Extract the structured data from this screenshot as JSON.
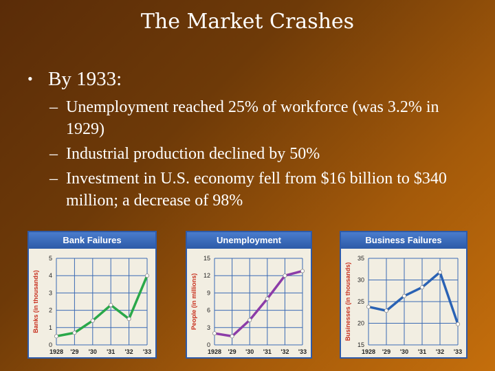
{
  "slide": {
    "title": "The Market Crashes",
    "bullet": "By 1933:",
    "sub_bullets": [
      "Unemployment reached 25% of workforce (was 3.2% in 1929)",
      "Industrial production declined by 50%",
      "Investment in U.S. economy fell from $16 billion to $340 million; a decrease of 98%"
    ]
  },
  "chart_data": [
    {
      "type": "line",
      "title": "Bank Failures",
      "ylabel": "Banks (in thousands)",
      "x_ticks": [
        "1928",
        "'29",
        "'30",
        "'31",
        "'32",
        "'33"
      ],
      "y_ticks": [
        "0",
        "1",
        "2",
        "3",
        "4",
        "5"
      ],
      "ylim": [
        0,
        5
      ],
      "series": [
        {
          "values": [
            0.5,
            0.7,
            1.4,
            2.3,
            1.5,
            4.0
          ]
        }
      ],
      "line_color": "#2aa84a",
      "label_color": "#c8301e"
    },
    {
      "type": "line",
      "title": "Unemployment",
      "ylabel": "People (in millions)",
      "x_ticks": [
        "1928",
        "'29",
        "'30",
        "'31",
        "'32",
        "'33"
      ],
      "y_ticks": [
        "0",
        "3",
        "6",
        "9",
        "12",
        "15"
      ],
      "ylim": [
        0,
        15
      ],
      "series": [
        {
          "values": [
            2.0,
            1.5,
            4.3,
            8.0,
            12.0,
            12.8
          ]
        }
      ],
      "line_color": "#8c3ca8",
      "label_color": "#c8301e"
    },
    {
      "type": "line",
      "title": "Business Failures",
      "ylabel": "Businesses (in thousands)",
      "x_ticks": [
        "1928",
        "'29",
        "'30",
        "'31",
        "'32",
        "'33"
      ],
      "y_ticks": [
        "15",
        "20",
        "25",
        "30",
        "35"
      ],
      "ylim": [
        15,
        35
      ],
      "series": [
        {
          "values": [
            23.8,
            22.9,
            26.3,
            28.3,
            31.8,
            19.8
          ]
        }
      ],
      "line_color": "#2a62b4",
      "label_color": "#c8301e"
    }
  ]
}
